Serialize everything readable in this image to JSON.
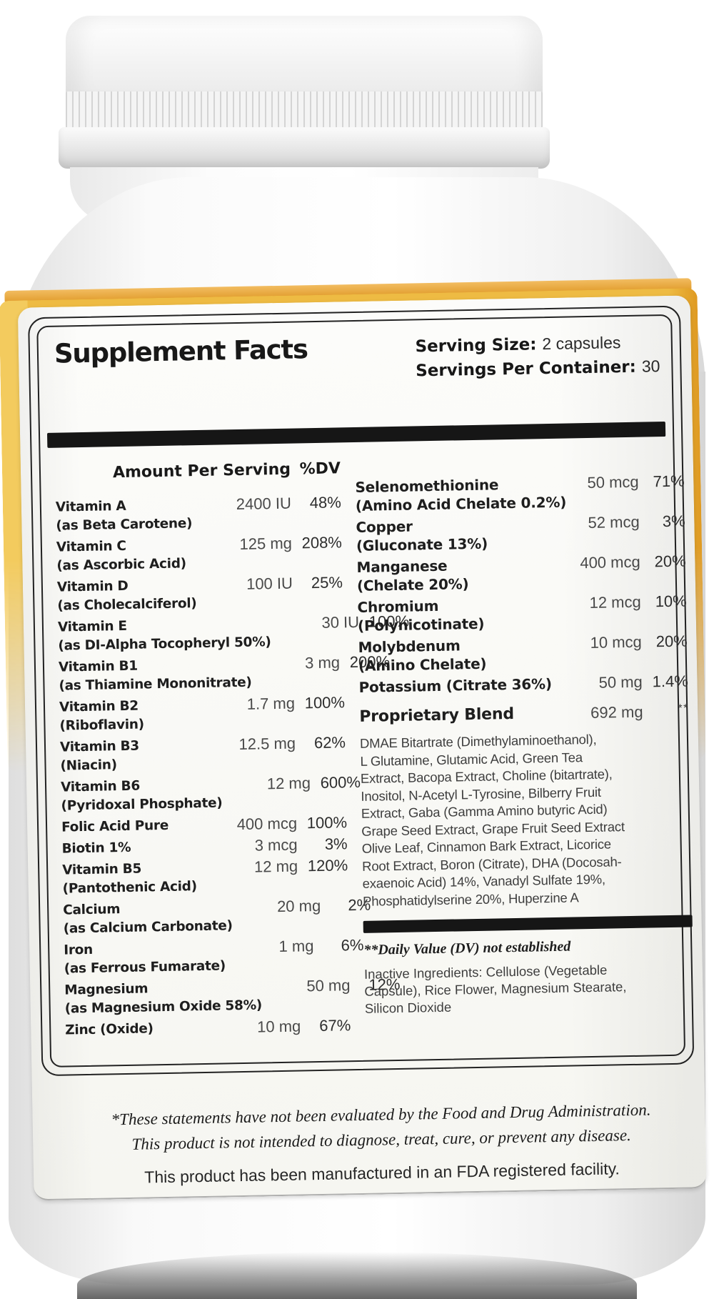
{
  "label": {
    "title": "Supplement Facts",
    "serving": {
      "size_label": "Serving Size:",
      "size_value": "2 capsules",
      "count_label": "Servings Per Container:",
      "count_value": "30"
    },
    "table_headers": {
      "amount": "Amount Per Serving",
      "dv": "%DV"
    },
    "left_rows": [
      {
        "name": "Vitamin A",
        "sub": "(as Beta Carotene)",
        "amount": "2400 IU",
        "dv": "48%"
      },
      {
        "name": "Vitamin C",
        "sub": "(as Ascorbic Acid)",
        "amount": "125 mg",
        "dv": "208%"
      },
      {
        "name": "Vitamin D",
        "sub": "(as Cholecalciferol)",
        "amount": "100 IU",
        "dv": "25%"
      },
      {
        "name": "Vitamin E",
        "sub": "(as DI-Alpha Tocopheryl 50%)",
        "amount": "30 IU",
        "dv": "100%"
      },
      {
        "name": "Vitamin B1",
        "sub": "(as Thiamine Mononitrate)",
        "amount": "3 mg",
        "dv": "200%"
      },
      {
        "name": "Vitamin B2",
        "sub": "(Riboflavin)",
        "amount": "1.7 mg",
        "dv": "100%"
      },
      {
        "name": "Vitamin B3",
        "sub": "(Niacin)",
        "amount": "12.5 mg",
        "dv": "62%"
      },
      {
        "name": "Vitamin B6",
        "sub": "(Pyridoxal Phosphate)",
        "amount": "12 mg",
        "dv": "600%"
      },
      {
        "name": "Folic Acid Pure",
        "sub": "",
        "amount": "400 mcg",
        "dv": "100%"
      },
      {
        "name": "Biotin 1%",
        "sub": "",
        "amount": "3 mcg",
        "dv": "3%"
      },
      {
        "name": "Vitamin B5",
        "sub": "(Pantothenic Acid)",
        "amount": "12 mg",
        "dv": "120%"
      },
      {
        "name": "Calcium",
        "sub": "(as Calcium Carbonate)",
        "amount": "20 mg",
        "dv": "2%"
      },
      {
        "name": "Iron",
        "sub": "(as Ferrous Fumarate)",
        "amount": "1 mg",
        "dv": "6%"
      },
      {
        "name": "Magnesium",
        "sub": "(as Magnesium Oxide 58%)",
        "amount": "50 mg",
        "dv": "12%"
      },
      {
        "name": "Zinc (Oxide)",
        "sub": "",
        "amount": "10 mg",
        "dv": "67%"
      }
    ],
    "right_rows": [
      {
        "name": "Selenomethionine",
        "sub": "(Amino Acid Chelate 0.2%)",
        "amount": "50 mcg",
        "dv": "71%"
      },
      {
        "name": "Copper",
        "sub": "(Gluconate 13%)",
        "amount": "52 mcg",
        "dv": "3%"
      },
      {
        "name": "Manganese",
        "sub": "(Chelate 20%)",
        "amount": "400 mcg",
        "dv": "20%"
      },
      {
        "name": "Chromium",
        "sub": "(Polynicotinate)",
        "amount": "12 mcg",
        "dv": "10%"
      },
      {
        "name": "Molybdenum",
        "sub": "(Amino Chelate)",
        "amount": "10 mcg",
        "dv": "20%"
      },
      {
        "name": "Potassium (Citrate 36%)",
        "sub": "",
        "amount": "50 mg",
        "dv": "1.4%"
      }
    ],
    "blend": {
      "name": "Proprietary Blend",
      "amount": "692 mg",
      "dv": "**"
    },
    "blend_ingredients": "DMAE Bitartrate (Dimethylaminoethanol),\nL Glutamine, Glutamic Acid, Green Tea\nExtract, Bacopa Extract, Choline (bitartrate),\nInositol, N-Acetyl L-Tyrosine, Bilberry Fruit\nExtract, Gaba (Gamma Amino butyric Acid)\nGrape Seed Extract, Grape Fruit Seed Extract\nOlive Leaf, Cinnamon Bark Extract, Licorice\nRoot Extract, Boron (Citrate), DHA (Docosah-\nexaenoic Acid) 14%, Vanadyl Sulfate 19%,\nPhosphatidylserine 20%, Huperzine A",
    "dv_note": "**Daily Value (DV) not established",
    "inactive": "Inactive Ingredients: Cellulose (Vegetable\nCapsule), Rice Flower, Magnesium Stearate,\nSilicon Dioxide",
    "disclaimer_italic": "*These statements have not been evaluated by the Food and Drug Administration.\nThis product is not intended to diagnose, treat, cure, or prevent any disease.",
    "disclaimer_plain": "This product has been manufactured in an FDA registered facility.",
    "colors": {
      "accent_orange": "#DD9520",
      "accent_yellow": "#F3CB5E",
      "bar_black": "#161616"
    }
  }
}
